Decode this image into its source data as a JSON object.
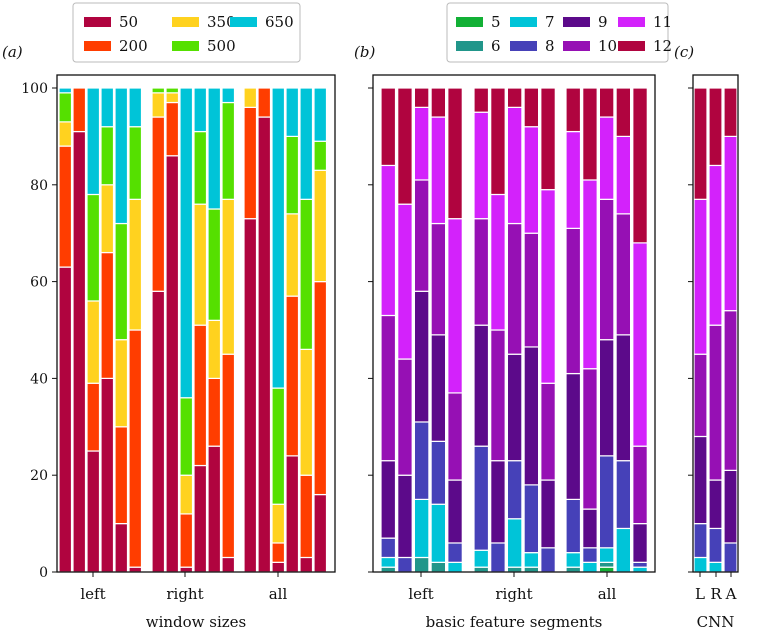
{
  "chart_data": [
    {
      "type": "bar",
      "stacked": true,
      "panel_label": "(a)",
      "xlabel": "window sizes",
      "ylabel": "",
      "ylim": [
        0,
        100
      ],
      "yticks": [
        0,
        20,
        40,
        60,
        80,
        100
      ],
      "legend_placement": "top",
      "series": [
        {
          "name": "50",
          "color": "#b0043f"
        },
        {
          "name": "200",
          "color": "#ff3d00"
        },
        {
          "name": "350",
          "color": "#ffd21f"
        },
        {
          "name": "500",
          "color": "#55e000"
        },
        {
          "name": "650",
          "color": "#00c4d8"
        }
      ],
      "groups": [
        {
          "label": "left",
          "bars": [
            [
              63,
              25,
              5,
              6,
              1
            ],
            [
              91,
              9,
              0,
              0,
              0
            ],
            [
              25,
              14,
              17,
              22,
              22
            ],
            [
              40,
              26,
              14,
              12,
              8
            ],
            [
              10,
              20,
              18,
              24,
              28
            ],
            [
              1,
              49,
              27,
              15,
              8
            ]
          ]
        },
        {
          "label": "right",
          "bars": [
            [
              58,
              36,
              5,
              1,
              0
            ],
            [
              86,
              11,
              2,
              1,
              0
            ],
            [
              1,
              11,
              8,
              16,
              64
            ],
            [
              22,
              29,
              25,
              15,
              9
            ],
            [
              26,
              14,
              12,
              23,
              25
            ],
            [
              3,
              42,
              32,
              20,
              3
            ]
          ]
        },
        {
          "label": "all",
          "bars": [
            [
              73,
              23,
              4,
              0,
              0
            ],
            [
              94,
              6,
              0,
              0,
              0
            ],
            [
              2,
              4,
              8,
              24,
              62
            ],
            [
              24,
              33,
              17,
              16,
              10
            ],
            [
              3,
              17,
              26,
              31,
              23
            ],
            [
              16,
              44,
              23,
              6,
              11
            ]
          ]
        }
      ]
    },
    {
      "type": "bar",
      "stacked": true,
      "panel_label": "(b)",
      "xlabel": "basic feature segments",
      "ylim": [
        0,
        100
      ],
      "legend_placement": "top",
      "series": [
        {
          "name": "5",
          "color": "#12b035"
        },
        {
          "name": "6",
          "color": "#21968a"
        },
        {
          "name": "7",
          "color": "#00c4d8"
        },
        {
          "name": "8",
          "color": "#4641b8"
        },
        {
          "name": "9",
          "color": "#5c0a8a"
        },
        {
          "name": "10",
          "color": "#9610b4"
        },
        {
          "name": "11",
          "color": "#d322fb"
        },
        {
          "name": "12",
          "color": "#b0043f"
        }
      ],
      "groups": [
        {
          "label": "left",
          "bars": [
            [
              0,
              1,
              2,
              4,
              16,
              30,
              31,
              16
            ],
            [
              0,
              0,
              0,
              3,
              17,
              24,
              32,
              24
            ],
            [
              0,
              3,
              12,
              16,
              27,
              23,
              15,
              4
            ],
            [
              0,
              2,
              12,
              13,
              22,
              23,
              22,
              6
            ],
            [
              0,
              0,
              2,
              4,
              13,
              18,
              36,
              27
            ]
          ]
        },
        {
          "label": "right",
          "bars": [
            [
              0,
              1,
              3.5,
              21.5,
              25,
              22,
              22,
              5
            ],
            [
              0,
              0,
              0,
              6,
              17,
              27,
              28,
              22
            ],
            [
              0,
              1,
              10,
              12,
              22,
              27,
              24,
              4
            ],
            [
              0,
              1,
              3,
              14,
              28.5,
              23.5,
              22,
              8
            ],
            [
              0,
              0,
              0,
              5,
              14,
              20,
              40,
              21
            ]
          ]
        },
        {
          "label": "all",
          "bars": [
            [
              0,
              1,
              3,
              11,
              26,
              30,
              20,
              9
            ],
            [
              0,
              0,
              2,
              3,
              8,
              29,
              39,
              19
            ],
            [
              1,
              1,
              3,
              19,
              24,
              29,
              17,
              6
            ],
            [
              0,
              0,
              9,
              14,
              26,
              25,
              16,
              10
            ],
            [
              0,
              0,
              1,
              1,
              8,
              16,
              42,
              32
            ]
          ]
        }
      ]
    },
    {
      "type": "bar",
      "stacked": true,
      "panel_label": "(c)",
      "xlabel": "CNN",
      "ylim": [
        0,
        100
      ],
      "series_ref": "same as (b)",
      "groups": [
        {
          "label": "L",
          "bars": [
            [
              0,
              0,
              3,
              7,
              18,
              17,
              32,
              23
            ]
          ]
        },
        {
          "label": "R",
          "bars": [
            [
              0,
              0,
              2,
              7,
              10,
              32,
              33,
              16
            ]
          ]
        },
        {
          "label": "A",
          "bars": [
            [
              0,
              0,
              0,
              6,
              15,
              33,
              36,
              10
            ]
          ]
        }
      ]
    }
  ]
}
